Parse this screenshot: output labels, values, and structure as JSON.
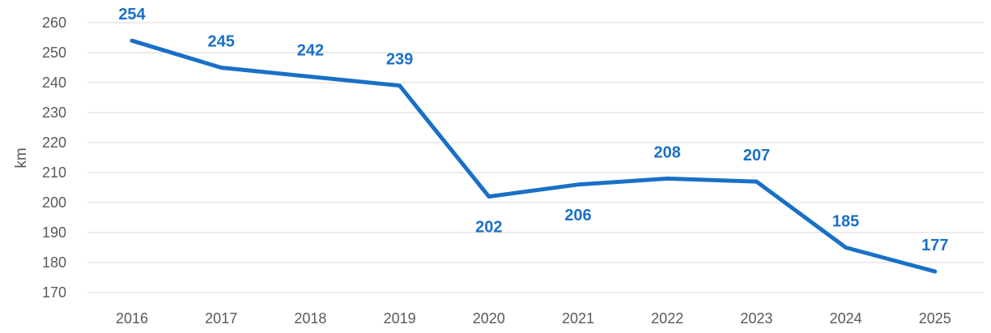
{
  "chart_data": {
    "type": "line",
    "title": "",
    "xlabel": "",
    "ylabel": "km",
    "categories": [
      "2016",
      "2017",
      "2018",
      "2019",
      "2020",
      "2021",
      "2022",
      "2023",
      "2024",
      "2025"
    ],
    "series": [
      {
        "values": [
          254,
          245,
          242,
          239,
          202,
          206,
          208,
          207,
          185,
          177
        ],
        "color": "#1a70c6",
        "data_labels": [
          "254",
          "245",
          "242",
          "239",
          "202",
          "206",
          "208",
          "207",
          "185",
          "177"
        ],
        "label_positions": [
          "above",
          "above",
          "above",
          "above",
          "below",
          "below",
          "above",
          "above",
          "above",
          "above"
        ]
      }
    ],
    "ylim": [
      170,
      260
    ],
    "yticks": [
      170,
      180,
      190,
      200,
      210,
      220,
      230,
      240,
      250,
      260
    ],
    "grid": true,
    "legend": "none"
  }
}
